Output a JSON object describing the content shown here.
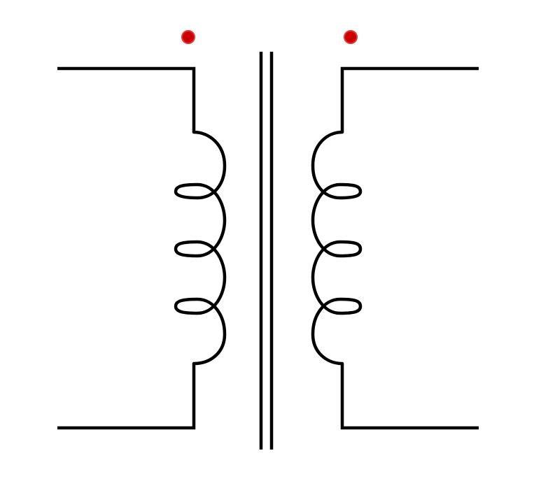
{
  "diagram": {
    "kind": "transformer-schematic",
    "colors": {
      "background": "#ffffff",
      "stroke": "#000000",
      "polarity_dot": "#cc0000",
      "polarity_dot_highlight": "#e53935"
    },
    "primary_winding": {
      "turns": 4,
      "polarity_dot": true
    },
    "secondary_winding": {
      "turns": 4,
      "polarity_dot": true
    },
    "core": {
      "lines": 2
    }
  }
}
